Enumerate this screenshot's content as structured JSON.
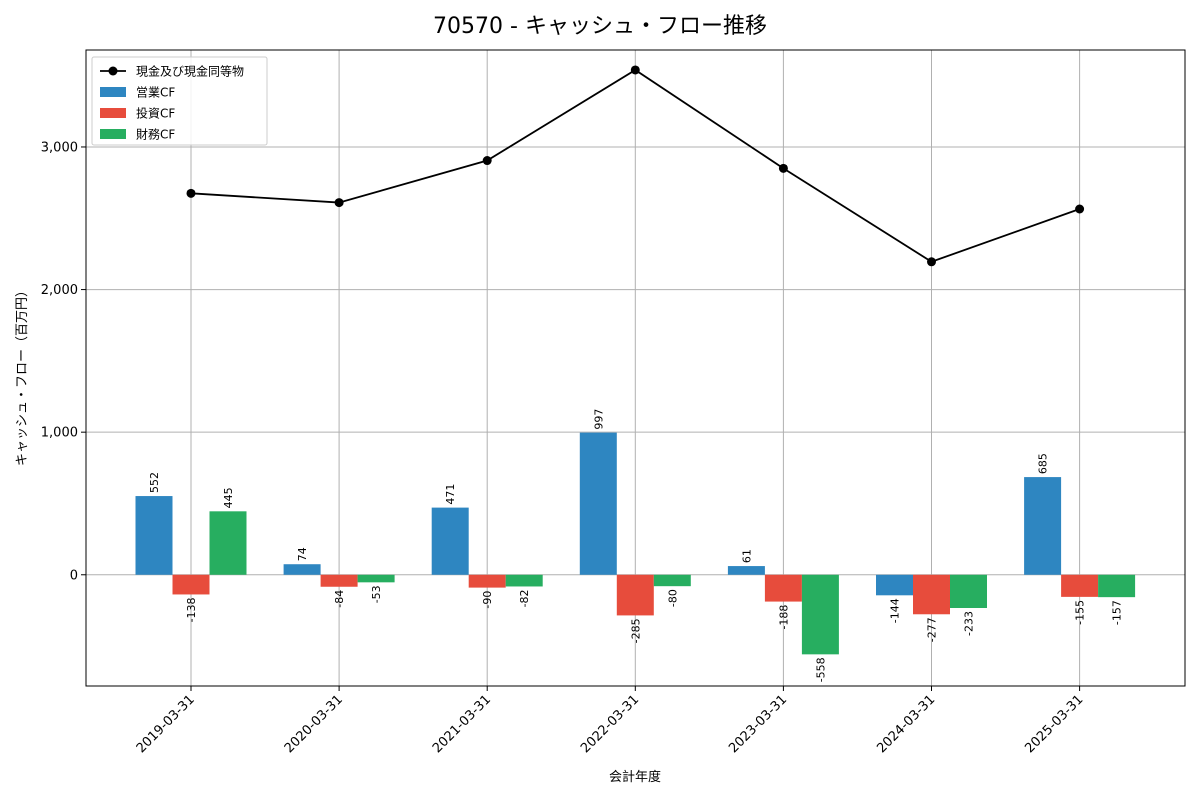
{
  "chart_data": {
    "type": "bar",
    "title": "70570 - キャッシュ・フロー推移",
    "xlabel": "会計年度",
    "ylabel": "キャッシュ・フロー（百万円）",
    "categories": [
      "2019-03-31",
      "2020-03-31",
      "2021-03-31",
      "2022-03-31",
      "2023-03-31",
      "2024-03-31",
      "2025-03-31"
    ],
    "ylim": [
      -780,
      3680
    ],
    "yticks": [
      0,
      1000,
      2000,
      3000
    ],
    "ytick_labels": [
      "0",
      "1,000",
      "2,000",
      "3,000"
    ],
    "grid": true,
    "legend_position": "top-left",
    "series": [
      {
        "name": "営業CF",
        "kind": "bar",
        "color": "#2e86c1",
        "values": [
          552,
          74,
          471,
          997,
          61,
          -144,
          685
        ],
        "labels": [
          "552",
          "74",
          "471",
          "997",
          "61",
          "-144",
          "685"
        ]
      },
      {
        "name": "投資CF",
        "kind": "bar",
        "color": "#e74c3c",
        "values": [
          -138,
          -84,
          -90,
          -285,
          -188,
          -277,
          -155
        ],
        "labels": [
          "-138",
          "-84",
          "-90",
          "-285",
          "-188",
          "-277",
          "-155"
        ]
      },
      {
        "name": "財務CF",
        "kind": "bar",
        "color": "#27ae60",
        "values": [
          445,
          -53,
          -82,
          -80,
          -558,
          -233,
          -157
        ],
        "labels": [
          "445",
          "-53",
          "-82",
          "-80",
          "-558",
          "-233",
          "-157"
        ]
      }
    ],
    "line_series": {
      "name": "現金及び現金同等物",
      "kind": "line",
      "color": "#000000",
      "values": [
        2675,
        2610,
        2905,
        3540,
        2850,
        2195,
        2565
      ]
    }
  }
}
